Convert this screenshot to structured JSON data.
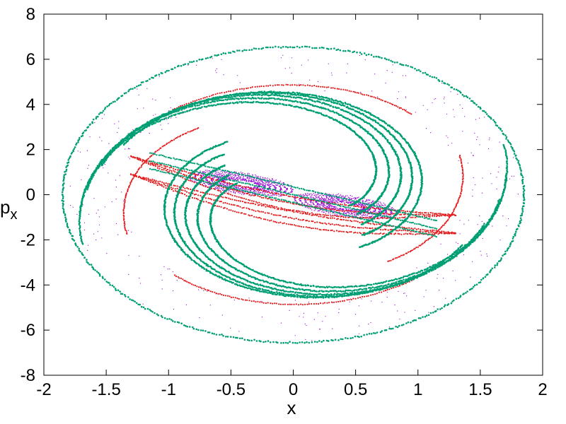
{
  "chart_data": {
    "type": "scatter",
    "title": "",
    "xlabel": "x",
    "ylabel": {
      "base": "p",
      "sub": "x"
    },
    "xlim": [
      -2,
      2
    ],
    "ylim": [
      -8,
      8
    ],
    "xticks": [
      -2,
      -1.5,
      -1,
      -0.5,
      0,
      0.5,
      1,
      1.5,
      2
    ],
    "xtick_labels": [
      "-2",
      "-1.5",
      "-1",
      "-0.5",
      "0",
      "0.5",
      "1",
      "1.5",
      "2"
    ],
    "yticks": [
      -8,
      -6,
      -4,
      -2,
      0,
      2,
      4,
      6,
      8
    ],
    "ytick_labels": [
      "-8",
      "-6",
      "-4",
      "-2",
      "0",
      "2",
      "4",
      "6",
      "8"
    ],
    "grid": false,
    "legend": "none",
    "series": [
      {
        "color": "#9400d3",
        "marker": "dot",
        "description_points": [
          [
            -0.75,
            0.9
          ],
          [
            -0.6,
            1.0
          ],
          [
            -0.45,
            0.7
          ],
          [
            -0.3,
            0.5
          ],
          [
            -0.15,
            0.2
          ],
          [
            0.0,
            0.0
          ],
          [
            0.15,
            -0.2
          ],
          [
            0.3,
            -0.45
          ],
          [
            0.45,
            -0.65
          ],
          [
            0.6,
            -0.8
          ],
          [
            0.75,
            -0.9
          ],
          [
            -0.5,
            0.3
          ],
          [
            0.5,
            -0.3
          ],
          [
            -1.9,
            0.5
          ],
          [
            1.9,
            -0.5
          ],
          [
            -1.5,
            -3.0
          ],
          [
            1.5,
            3.0
          ],
          [
            -1.0,
            -4.5
          ],
          [
            1.0,
            4.5
          ]
        ]
      },
      {
        "color": "#e41a1c",
        "marker": "dot",
        "description_points": [
          [
            -1.35,
            -4.0
          ],
          [
            -1.5,
            -2.5
          ],
          [
            -1.3,
            -1.0
          ],
          [
            -0.8,
            1.5
          ],
          [
            -0.2,
            1.8
          ],
          [
            0.4,
            0.6
          ],
          [
            0.9,
            -0.8
          ],
          [
            1.3,
            -1.5
          ],
          [
            1.5,
            0.0
          ],
          [
            1.6,
            2.2
          ],
          [
            1.35,
            4.0
          ],
          [
            0.2,
            -1.9
          ],
          [
            -0.4,
            -0.6
          ],
          [
            -0.9,
            0.8
          ]
        ]
      },
      {
        "color": "#009e73",
        "marker": "dot",
        "description_points": [
          [
            -1.8,
            1.0
          ],
          [
            -1.6,
            4.2
          ],
          [
            -0.8,
            6.2
          ],
          [
            0.0,
            6.6
          ],
          [
            0.8,
            6.2
          ],
          [
            1.6,
            4.2
          ],
          [
            1.8,
            1.0
          ],
          [
            1.5,
            -3.0
          ],
          [
            0.8,
            -6.2
          ],
          [
            0.0,
            -6.6
          ],
          [
            -0.8,
            -6.2
          ],
          [
            -1.5,
            -3.0
          ],
          [
            -1.1,
            1.6
          ],
          [
            -0.3,
            1.2
          ],
          [
            0.4,
            1.0
          ],
          [
            1.1,
            -1.6
          ],
          [
            0.3,
            -1.2
          ],
          [
            -0.4,
            -1.0
          ]
        ]
      }
    ]
  }
}
